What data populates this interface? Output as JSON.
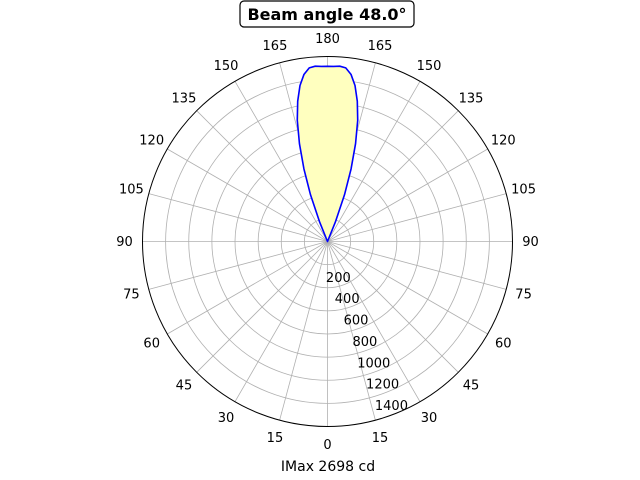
{
  "chart_data": {
    "type": "line",
    "projection": "polar",
    "title": "Beam angle 48.0°",
    "xlabel": "IMax 2698 cd",
    "angle_tick_labels": [
      "0",
      "15",
      "30",
      "45",
      "60",
      "75",
      "90",
      "105",
      "120",
      "135",
      "150",
      "165",
      "180",
      "165",
      "150",
      "135",
      "120",
      "105",
      "90",
      "75",
      "60",
      "45",
      "30",
      "15"
    ],
    "angle_tick_degrees": [
      0,
      15,
      30,
      45,
      60,
      75,
      90,
      105,
      120,
      135,
      150,
      165,
      180,
      195,
      210,
      225,
      240,
      255,
      270,
      285,
      300,
      315,
      330,
      345
    ],
    "radial_ticks": [
      200,
      400,
      600,
      800,
      1000,
      1200,
      1400
    ],
    "radial_tick_labels": [
      "200",
      "400",
      "600",
      "800",
      "1000",
      "1200",
      "1400"
    ],
    "rlim": [
      0,
      1600
    ],
    "grid": true,
    "orientation": "0 at bottom, 180 at top",
    "series": [
      {
        "color": "#0000ff",
        "fill": "#ffffbf",
        "angles_deg": [
          156,
          158,
          160,
          162,
          164,
          166,
          168,
          170,
          172,
          174,
          176,
          178,
          180,
          182,
          184,
          186,
          188,
          190,
          192,
          194,
          196,
          198,
          200,
          202,
          204
        ],
        "values": [
          0,
          180,
          430,
          660,
          880,
          1080,
          1240,
          1370,
          1460,
          1510,
          1520,
          1515,
          1515,
          1515,
          1520,
          1510,
          1460,
          1370,
          1240,
          1080,
          880,
          660,
          430,
          180,
          0
        ]
      }
    ]
  }
}
